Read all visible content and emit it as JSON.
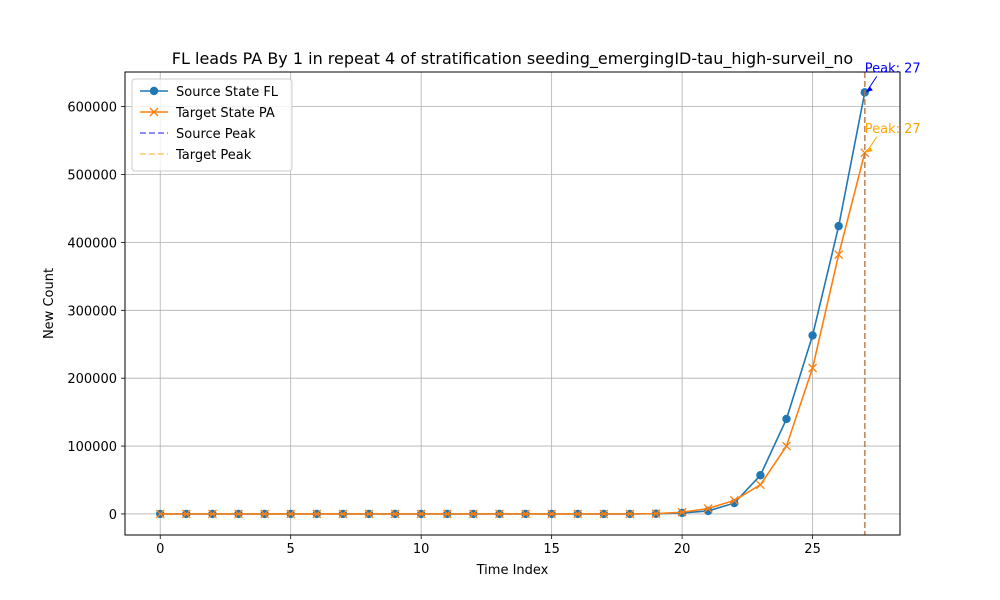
{
  "chart_data": {
    "type": "line",
    "title": "FL leads PA By 1 in repeat 4 of stratification seeding_emergingID-tau_high-surveil_no",
    "xlabel": "Time Index",
    "ylabel": "New Count",
    "xlim": [
      -1.35,
      28.35
    ],
    "ylim": [
      -31000,
      651000
    ],
    "xticks": [
      0,
      5,
      10,
      15,
      20,
      25
    ],
    "yticks": [
      0,
      100000,
      200000,
      300000,
      400000,
      500000,
      600000
    ],
    "grid": true,
    "legend_position": "top-left",
    "x": [
      0,
      1,
      2,
      3,
      4,
      5,
      6,
      7,
      8,
      9,
      10,
      11,
      12,
      13,
      14,
      15,
      16,
      17,
      18,
      19,
      20,
      21,
      22,
      23,
      24,
      25,
      26,
      27
    ],
    "series": [
      {
        "name": "Source State FL",
        "color": "#1f77b4",
        "marker": "circle",
        "values": [
          0,
          0,
          0,
          0,
          0,
          0,
          0,
          0,
          0,
          0,
          0,
          0,
          0,
          0,
          0,
          0,
          0,
          0,
          0,
          300,
          1500,
          4500,
          16000,
          57000,
          140000,
          263000,
          424000,
          621000
        ]
      },
      {
        "name": "Target State PA",
        "color": "#ff7f0e",
        "marker": "x",
        "values": [
          0,
          0,
          0,
          0,
          0,
          0,
          0,
          0,
          0,
          0,
          0,
          0,
          0,
          0,
          0,
          0,
          0,
          0,
          0,
          500,
          2500,
          8000,
          20000,
          43000,
          100000,
          215000,
          382000,
          532000
        ]
      }
    ],
    "peak_lines": [
      {
        "name": "Source Peak",
        "x": 27,
        "color": "#0000ff"
      },
      {
        "name": "Target Peak",
        "x": 27,
        "color": "#ffa500"
      }
    ],
    "annotations": [
      {
        "text": "Peak: 27",
        "x": 27,
        "y": 621000,
        "color": "#0000ff"
      },
      {
        "text": "Peak: 27",
        "x": 27,
        "y": 532000,
        "color": "#ffa500"
      }
    ]
  }
}
